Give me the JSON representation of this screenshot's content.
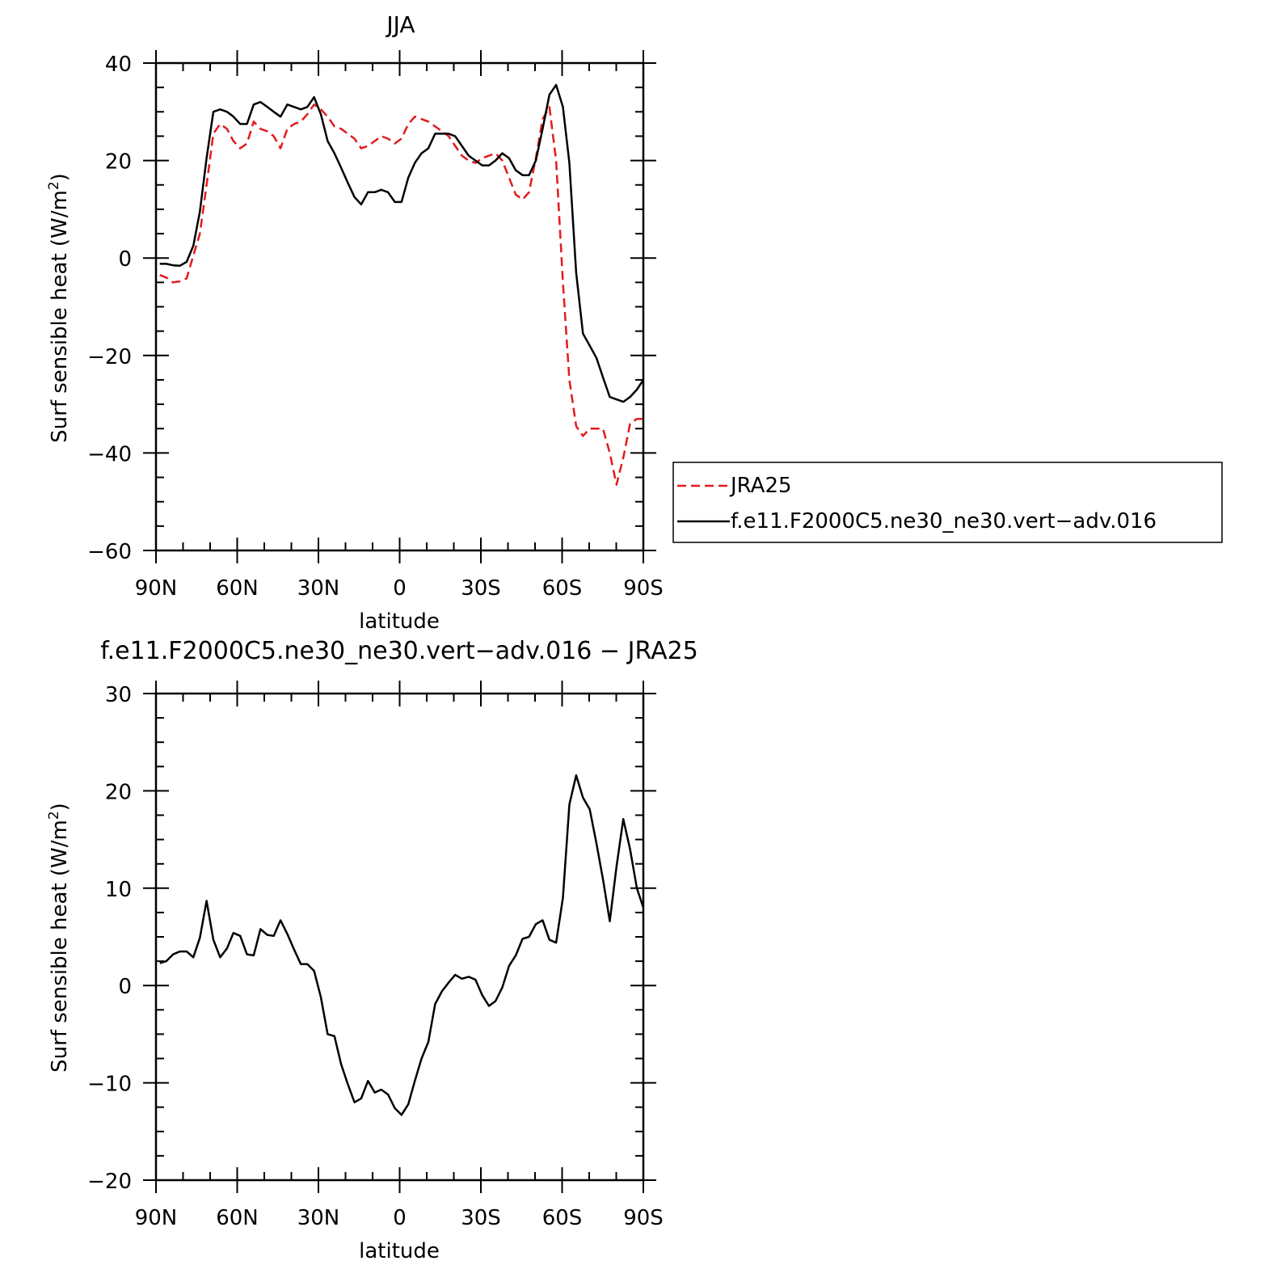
{
  "chart_data": [
    {
      "type": "line",
      "title": "JJA",
      "xlabel": "latitude",
      "ylabel": "Surf sensible heat (W/m²)",
      "ylabel_main": "Surf sensible heat (W/m",
      "ylabel_sup": "2",
      "ylabel_close": ")",
      "xlim": [
        90,
        -90
      ],
      "ylim": [
        -60,
        40
      ],
      "yticks": [
        -60,
        -40,
        -20,
        0,
        20,
        40
      ],
      "yticklabels": [
        "−60",
        "−40",
        "−20",
        "0",
        "20",
        "40"
      ],
      "xticks": [
        90,
        60,
        30,
        0,
        -30,
        -60,
        -90
      ],
      "xticklabels": [
        "90N",
        "60N",
        "30N",
        "0",
        "30S",
        "60S",
        "90S"
      ],
      "x": [
        88.6,
        86.2,
        83.7,
        81.2,
        78.7,
        76.2,
        73.8,
        71.3,
        68.8,
        66.3,
        63.8,
        61.4,
        58.9,
        56.4,
        53.9,
        51.4,
        48.9,
        46.5,
        44.0,
        41.5,
        39.0,
        36.5,
        34.1,
        31.6,
        29.1,
        26.6,
        24.1,
        21.6,
        19.2,
        16.7,
        14.2,
        11.7,
        9.2,
        6.8,
        4.3,
        1.8,
        -0.7,
        -3.2,
        -5.6,
        -8.1,
        -10.6,
        -13.1,
        -15.6,
        -18.1,
        -20.5,
        -23.0,
        -25.5,
        -28.0,
        -30.5,
        -33.0,
        -35.4,
        -37.9,
        -40.4,
        -42.9,
        -45.4,
        -47.8,
        -50.3,
        -52.8,
        -55.3,
        -57.8,
        -60.3,
        -62.7,
        -65.2,
        -67.7,
        -70.2,
        -72.7,
        -75.1,
        -77.6,
        -80.1,
        -82.6,
        -85.1,
        -87.6,
        -90.0
      ],
      "series": [
        {
          "name": "JRA25",
          "color": "#e41a1c",
          "dash": "dashed",
          "values": [
            -3.5,
            -4.0,
            -5.0,
            -4.8,
            -4.2,
            0.5,
            5.0,
            15.0,
            25.5,
            27.5,
            26.5,
            24.0,
            22.5,
            23.5,
            28.0,
            26.5,
            26.0,
            25.0,
            22.5,
            26.5,
            27.5,
            28.0,
            29.5,
            31.5,
            30.5,
            29.0,
            27.0,
            26.5,
            25.5,
            24.5,
            22.5,
            23.0,
            24.0,
            25.0,
            24.5,
            23.5,
            24.5,
            27.5,
            29.0,
            28.5,
            28.0,
            27.0,
            26.0,
            25.0,
            23.0,
            21.0,
            20.0,
            19.5,
            20.5,
            21.0,
            21.5,
            20.0,
            16.5,
            13.0,
            12.0,
            13.5,
            20.5,
            28.5,
            31.0,
            20.0,
            -5.0,
            -25.0,
            -34.5,
            -36.5,
            -35.0,
            -35.0,
            -35.0,
            -40.0,
            -46.5,
            -41.0,
            -34.0,
            -33.0,
            -33.0
          ]
        },
        {
          "name": "f.e11.F2000C5.ne30_ne30.vert−adv.016",
          "color": "#000000",
          "dash": "solid",
          "values": [
            -1.2,
            -1.2,
            -1.5,
            -1.6,
            -0.8,
            2.5,
            9.5,
            20.5,
            30.0,
            30.5,
            30.0,
            29.0,
            27.5,
            27.5,
            31.5,
            32.0,
            31.0,
            30.0,
            29.0,
            31.5,
            31.0,
            30.5,
            31.0,
            33.0,
            29.5,
            24.0,
            21.5,
            18.5,
            15.5,
            12.5,
            11.0,
            13.5,
            13.5,
            14.0,
            13.5,
            11.5,
            11.5,
            16.5,
            19.5,
            21.5,
            22.5,
            25.5,
            25.5,
            25.5,
            25.0,
            23.0,
            21.0,
            20.0,
            19.0,
            19.0,
            20.0,
            21.5,
            20.5,
            18.0,
            17.0,
            17.0,
            20.0,
            26.5,
            33.5,
            35.5,
            31.0,
            19.5,
            -3.0,
            -15.5,
            -18.0,
            -20.5,
            -24.5,
            -28.5,
            -29.0,
            -29.5,
            -28.5,
            -27.0,
            -25.0
          ]
        }
      ],
      "legend": {
        "placement": "right",
        "entries": [
          "JRA25",
          "f.e11.F2000C5.ne30_ne30.vert−adv.016"
        ]
      }
    },
    {
      "type": "line",
      "title": "f.e11.F2000C5.ne30_ne30.vert−adv.016 − JRA25",
      "xlabel": "latitude",
      "ylabel": "Surf sensible heat (W/m²)",
      "ylabel_main": "Surf sensible heat (W/m",
      "ylabel_sup": "2",
      "ylabel_close": ")",
      "xlim": [
        90,
        -90
      ],
      "ylim": [
        -20,
        30
      ],
      "yticks": [
        -20,
        -10,
        0,
        10,
        20,
        30
      ],
      "yticklabels": [
        "−20",
        "−10",
        "0",
        "10",
        "20",
        "30"
      ],
      "xticks": [
        90,
        60,
        30,
        0,
        -30,
        -60,
        -90
      ],
      "xticklabels": [
        "90N",
        "60N",
        "30N",
        "0",
        "30S",
        "60S",
        "90S"
      ],
      "x": [
        88.6,
        86.2,
        83.7,
        81.2,
        78.7,
        76.2,
        73.8,
        71.3,
        68.8,
        66.3,
        63.8,
        61.4,
        58.9,
        56.4,
        53.9,
        51.4,
        48.9,
        46.5,
        44.0,
        41.5,
        39.0,
        36.5,
        34.1,
        31.6,
        29.1,
        26.6,
        24.1,
        21.6,
        19.2,
        16.7,
        14.2,
        11.7,
        9.2,
        6.8,
        4.3,
        1.8,
        -0.7,
        -3.2,
        -5.6,
        -8.1,
        -10.6,
        -13.1,
        -15.6,
        -18.1,
        -20.5,
        -23.0,
        -25.5,
        -28.0,
        -30.5,
        -33.0,
        -35.4,
        -37.9,
        -40.4,
        -42.9,
        -45.4,
        -47.8,
        -50.3,
        -52.8,
        -55.3,
        -57.8,
        -60.3,
        -62.7,
        -65.2,
        -67.7,
        -70.2,
        -72.7,
        -75.1,
        -77.6,
        -80.1,
        -82.6,
        -85.1,
        -87.6,
        -90.0
      ],
      "series": [
        {
          "color": "#000000",
          "dash": "solid",
          "values": [
            2.3,
            2.5,
            3.2,
            3.5,
            3.5,
            2.9,
            4.9,
            8.7,
            4.7,
            2.9,
            3.8,
            5.4,
            5.1,
            3.2,
            3.1,
            5.8,
            5.2,
            5.1,
            6.7,
            5.3,
            3.7,
            2.2,
            2.2,
            1.5,
            -1.2,
            -5.0,
            -5.2,
            -8.1,
            -10.1,
            -12.0,
            -11.6,
            -9.8,
            -11.0,
            -10.7,
            -11.2,
            -12.6,
            -13.3,
            -12.2,
            -9.8,
            -7.5,
            -5.8,
            -1.9,
            -0.6,
            0.3,
            1.1,
            0.7,
            0.9,
            0.6,
            -1.0,
            -2.1,
            -1.6,
            -0.2,
            2.0,
            3.1,
            4.8,
            5.0,
            6.3,
            6.7,
            4.7,
            4.4,
            9.0,
            18.6,
            21.6,
            19.3,
            18.1,
            14.6,
            10.9,
            6.6,
            12.2,
            17.1,
            14.0,
            10.0,
            8.0
          ]
        }
      ]
    }
  ]
}
